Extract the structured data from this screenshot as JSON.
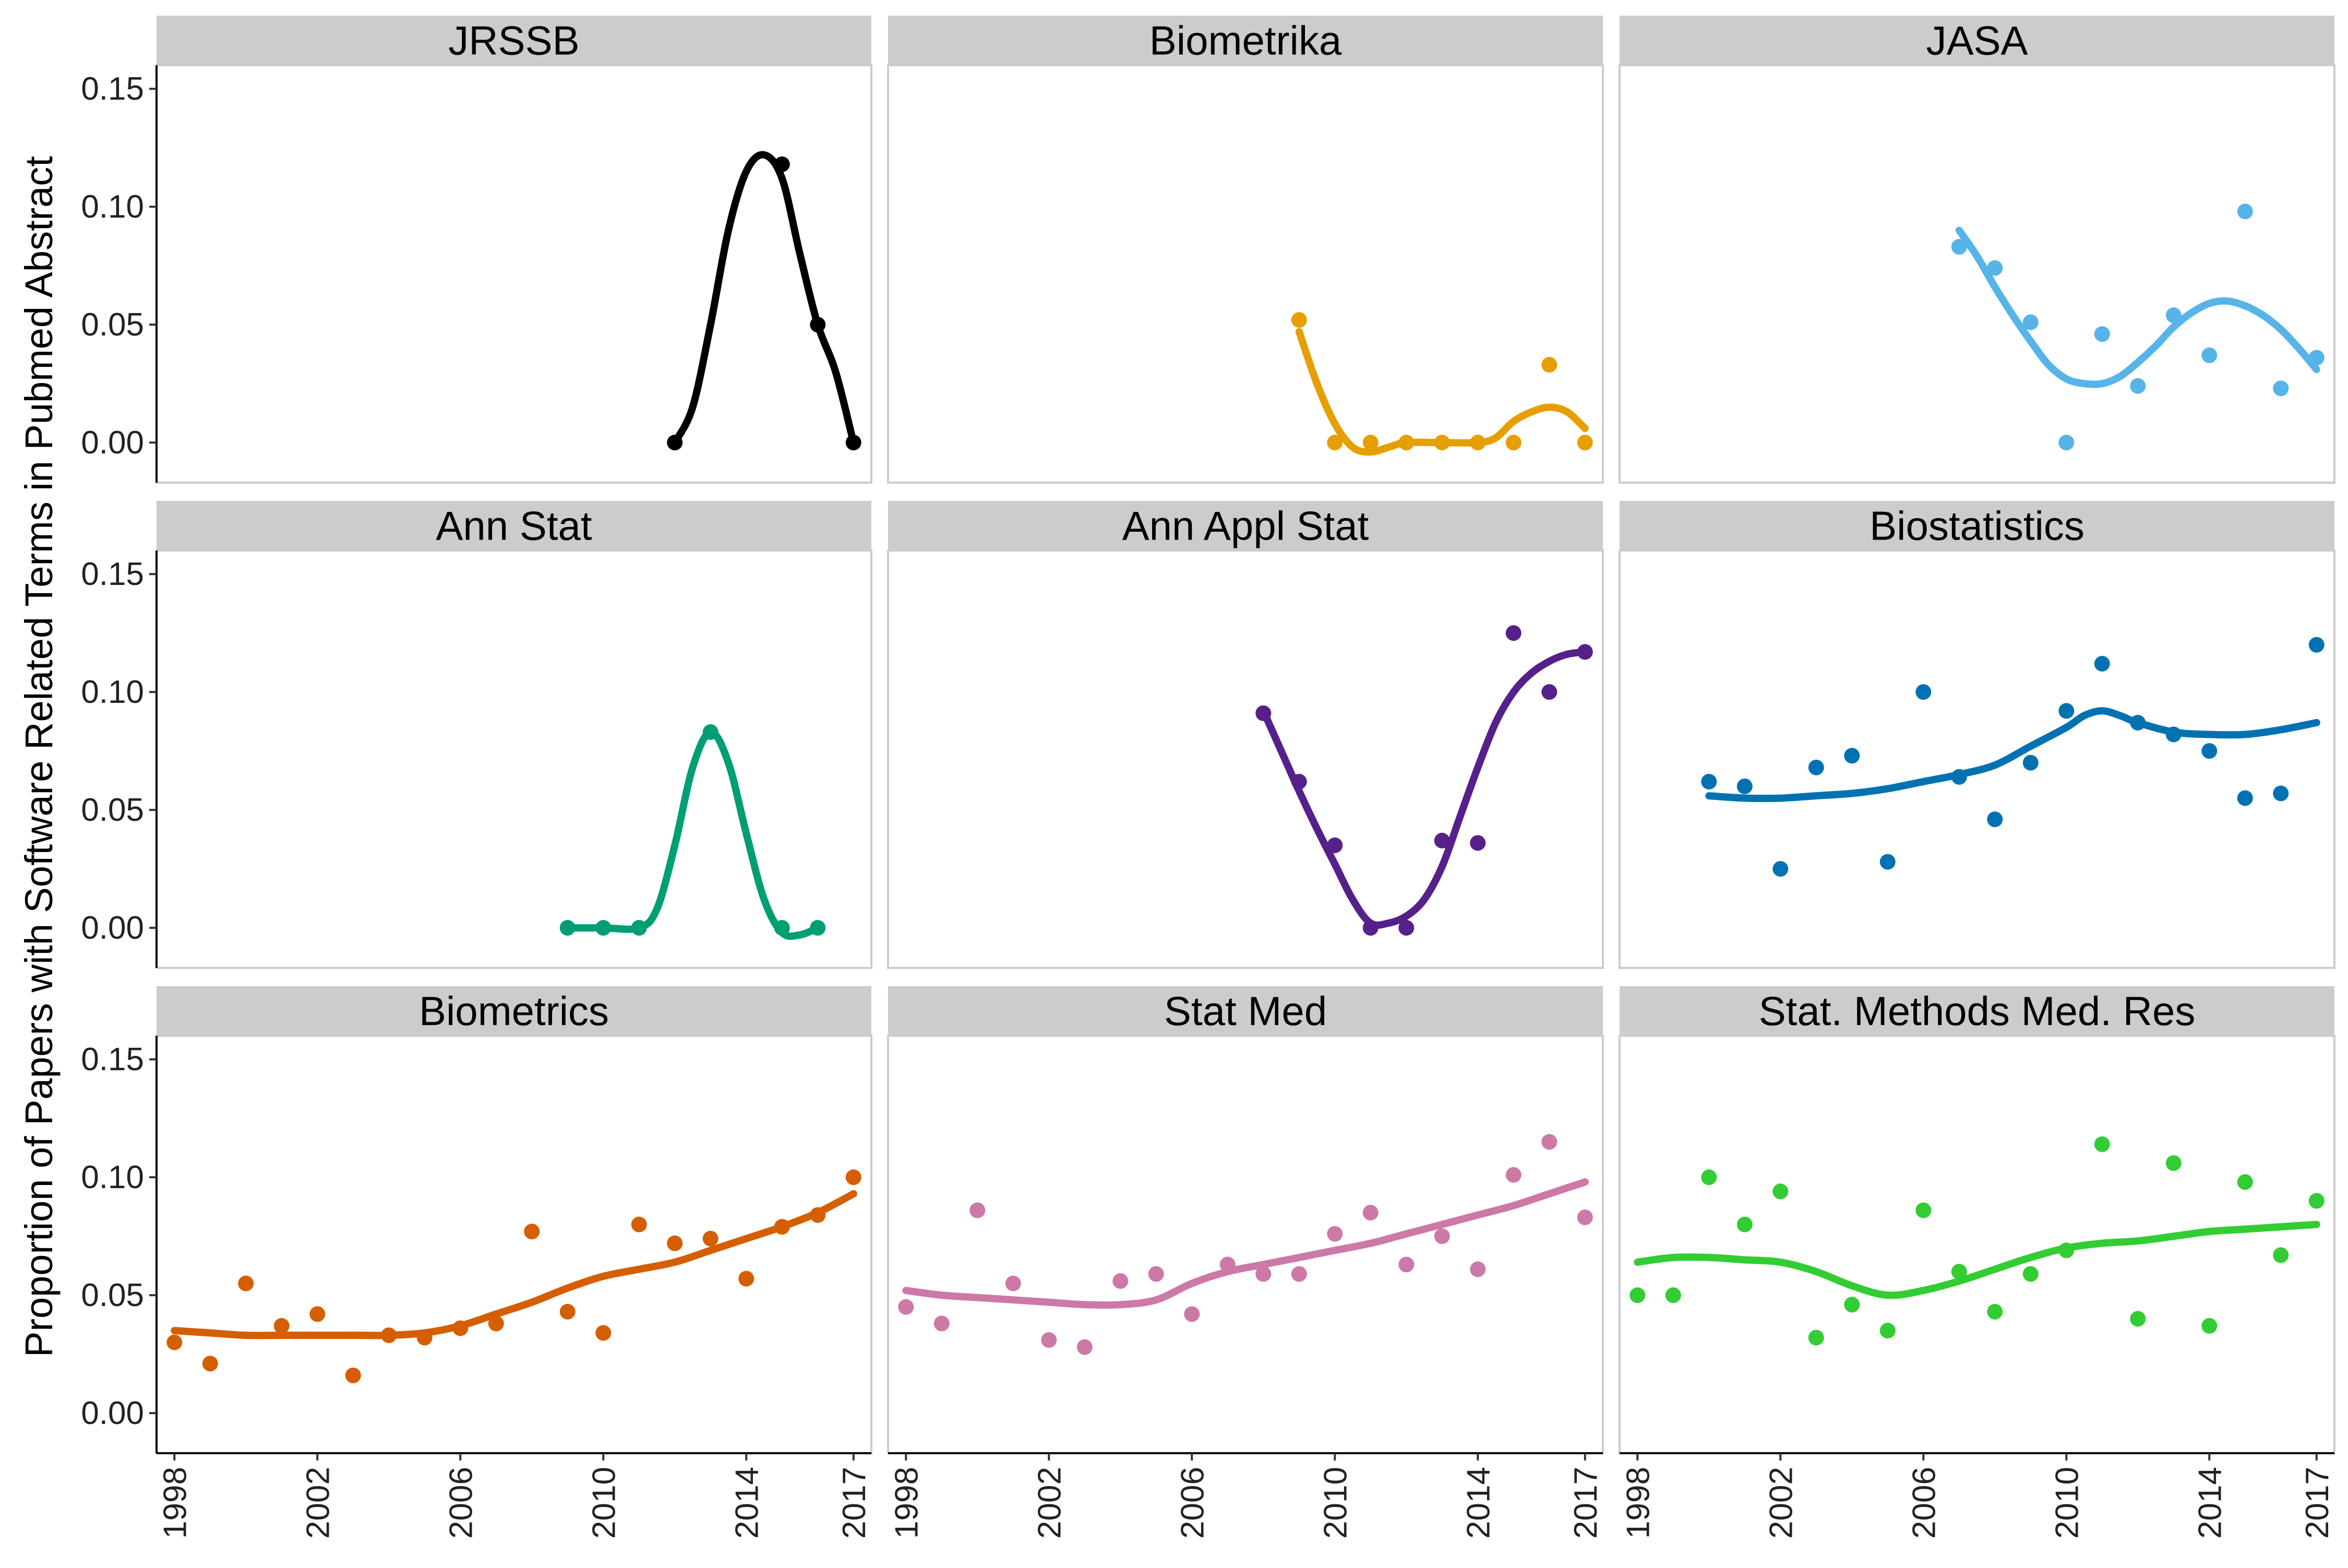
{
  "chart_data": {
    "type": "scatter",
    "ylabel": "Proportion of Papers with Software Related Terms in Pubmed Abstract",
    "xlabel": "",
    "x_ticks": [
      "1998",
      "2002",
      "2006",
      "2010",
      "2014",
      "2017"
    ],
    "y_ticks": [
      "0.00",
      "0.05",
      "0.10",
      "0.15"
    ],
    "xlim": [
      1997.5,
      2017.5
    ],
    "ylim": [
      -0.017,
      0.16
    ],
    "legend": "none",
    "grid": false,
    "trend": "smoothed line per panel",
    "panels": [
      {
        "name": "JRSSB",
        "color": "#000000",
        "x": [
          2012,
          2015,
          2016,
          2017
        ],
        "y": [
          0.0,
          0.118,
          0.05,
          0.0
        ],
        "smooth_x": [
          2012,
          2012.5,
          2013,
          2013.5,
          2014,
          2014.5,
          2015,
          2015.5,
          2016,
          2016.5,
          2017
        ],
        "smooth_y": [
          0.0,
          0.015,
          0.05,
          0.09,
          0.115,
          0.122,
          0.112,
          0.08,
          0.05,
          0.03,
          0.0
        ]
      },
      {
        "name": "Biometrika",
        "color": "#E69F00",
        "x": [
          2009,
          2010,
          2011,
          2012,
          2013,
          2014,
          2015,
          2016,
          2017
        ],
        "y": [
          0.052,
          0.0,
          0.0,
          0.0,
          0.0,
          0.0,
          0.0,
          0.033,
          0.0
        ],
        "smooth_x": [
          2009,
          2009.5,
          2010,
          2010.5,
          2011,
          2011.5,
          2012,
          2013,
          2014,
          2014.5,
          2015,
          2015.5,
          2016,
          2016.5,
          2017
        ],
        "smooth_y": [
          0.047,
          0.025,
          0.008,
          -0.002,
          -0.004,
          -0.002,
          0.0,
          0.0,
          0.0,
          0.002,
          0.009,
          0.013,
          0.015,
          0.013,
          0.006
        ]
      },
      {
        "name": "JASA",
        "color": "#56B4E9",
        "x": [
          2007,
          2008,
          2009,
          2010,
          2011,
          2012,
          2013,
          2014,
          2015,
          2016,
          2017
        ],
        "y": [
          0.083,
          0.074,
          0.051,
          0.0,
          0.046,
          0.024,
          0.054,
          0.037,
          0.098,
          0.023,
          0.036
        ],
        "smooth_x": [
          2007,
          2007.5,
          2008,
          2008.5,
          2009,
          2009.5,
          2010,
          2010.5,
          2011,
          2011.5,
          2012,
          2012.5,
          2013,
          2013.5,
          2014,
          2014.5,
          2015,
          2015.5,
          2016,
          2016.5,
          2017
        ],
        "smooth_y": [
          0.09,
          0.079,
          0.066,
          0.054,
          0.043,
          0.033,
          0.027,
          0.025,
          0.025,
          0.028,
          0.034,
          0.041,
          0.049,
          0.055,
          0.059,
          0.06,
          0.058,
          0.054,
          0.048,
          0.04,
          0.031
        ]
      },
      {
        "name": "Ann Stat",
        "color": "#009E73",
        "x": [
          2009,
          2010,
          2011,
          2013,
          2015,
          2016
        ],
        "y": [
          0.0,
          0.0,
          0.0,
          0.083,
          0.0,
          0.0
        ],
        "smooth_x": [
          2009,
          2010,
          2011,
          2011.5,
          2012,
          2012.5,
          2013,
          2013.5,
          2014,
          2014.5,
          2015,
          2015.5,
          2016
        ],
        "smooth_y": [
          0.0,
          0.0,
          0.0,
          0.008,
          0.035,
          0.068,
          0.083,
          0.07,
          0.04,
          0.012,
          -0.002,
          -0.003,
          0.0
        ]
      },
      {
        "name": "Ann Appl Stat",
        "color": "#56208A",
        "x": [
          2008,
          2009,
          2010,
          2011,
          2012,
          2013,
          2014,
          2015,
          2016,
          2017
        ],
        "y": [
          0.091,
          0.062,
          0.035,
          0.0,
          0.0,
          0.037,
          0.036,
          0.125,
          0.1,
          0.117
        ],
        "smooth_x": [
          2008,
          2008.5,
          2009,
          2009.5,
          2010,
          2010.5,
          2011,
          2011.5,
          2012,
          2012.5,
          2013,
          2013.5,
          2014,
          2014.5,
          2015,
          2015.5,
          2016,
          2016.5,
          2017
        ],
        "smooth_y": [
          0.092,
          0.075,
          0.058,
          0.042,
          0.027,
          0.012,
          0.002,
          0.002,
          0.005,
          0.012,
          0.026,
          0.047,
          0.068,
          0.087,
          0.1,
          0.108,
          0.113,
          0.116,
          0.117
        ]
      },
      {
        "name": "Biostatistics",
        "color": "#0072B2",
        "x": [
          2000,
          2001,
          2002,
          2003,
          2004,
          2005,
          2006,
          2007,
          2008,
          2009,
          2010,
          2011,
          2012,
          2013,
          2014,
          2015,
          2016,
          2017
        ],
        "y": [
          0.062,
          0.06,
          0.025,
          0.068,
          0.073,
          0.028,
          0.1,
          0.064,
          0.046,
          0.07,
          0.092,
          0.112,
          0.087,
          0.082,
          0.075,
          0.055,
          0.057,
          0.12
        ],
        "smooth_x": [
          2000,
          2001,
          2002,
          2003,
          2004,
          2005,
          2006,
          2007,
          2008,
          2009,
          2010,
          2010.5,
          2011,
          2011.5,
          2012,
          2013,
          2014,
          2015,
          2016,
          2017
        ],
        "smooth_y": [
          0.056,
          0.055,
          0.055,
          0.056,
          0.057,
          0.059,
          0.062,
          0.065,
          0.069,
          0.077,
          0.085,
          0.09,
          0.092,
          0.09,
          0.087,
          0.083,
          0.082,
          0.082,
          0.084,
          0.087
        ]
      },
      {
        "name": "Biometrics",
        "color": "#D55E00",
        "x": [
          1998,
          1999,
          2000,
          2001,
          2002,
          2003,
          2004,
          2005,
          2006,
          2007,
          2008,
          2009,
          2010,
          2011,
          2012,
          2013,
          2014,
          2015,
          2016,
          2017
        ],
        "y": [
          0.03,
          0.021,
          0.055,
          0.037,
          0.042,
          0.016,
          0.033,
          0.032,
          0.036,
          0.038,
          0.077,
          0.043,
          0.034,
          0.08,
          0.072,
          0.074,
          0.057,
          0.079,
          0.084,
          0.1
        ],
        "smooth_x": [
          1998,
          1999,
          2000,
          2001,
          2002,
          2003,
          2004,
          2005,
          2006,
          2007,
          2008,
          2009,
          2010,
          2011,
          2012,
          2013,
          2014,
          2015,
          2016,
          2017
        ],
        "smooth_y": [
          0.035,
          0.034,
          0.033,
          0.033,
          0.033,
          0.033,
          0.033,
          0.034,
          0.037,
          0.042,
          0.047,
          0.053,
          0.058,
          0.061,
          0.064,
          0.069,
          0.074,
          0.079,
          0.085,
          0.093
        ]
      },
      {
        "name": "Stat Med",
        "color": "#CC79A7",
        "x": [
          1998,
          1999,
          2000,
          2001,
          2002,
          2003,
          2004,
          2005,
          2006,
          2007,
          2008,
          2009,
          2010,
          2011,
          2012,
          2013,
          2014,
          2015,
          2016,
          2017
        ],
        "y": [
          0.045,
          0.038,
          0.086,
          0.055,
          0.031,
          0.028,
          0.056,
          0.059,
          0.042,
          0.063,
          0.059,
          0.059,
          0.076,
          0.085,
          0.063,
          0.075,
          0.061,
          0.101,
          0.115,
          0.083
        ],
        "smooth_x": [
          1998,
          1999,
          2000,
          2001,
          2002,
          2003,
          2004,
          2005,
          2006,
          2007,
          2008,
          2009,
          2010,
          2011,
          2012,
          2013,
          2014,
          2015,
          2016,
          2017
        ],
        "smooth_y": [
          0.052,
          0.05,
          0.049,
          0.048,
          0.047,
          0.046,
          0.046,
          0.048,
          0.055,
          0.06,
          0.063,
          0.066,
          0.069,
          0.072,
          0.076,
          0.08,
          0.084,
          0.088,
          0.093,
          0.098
        ]
      },
      {
        "name": "Stat. Methods Med. Res",
        "color": "#32CD32",
        "x": [
          1998,
          1999,
          2000,
          2001,
          2002,
          2003,
          2004,
          2005,
          2006,
          2007,
          2008,
          2009,
          2010,
          2011,
          2012,
          2013,
          2014,
          2015,
          2016,
          2017
        ],
        "y": [
          0.05,
          0.05,
          0.1,
          0.08,
          0.094,
          0.032,
          0.046,
          0.035,
          0.086,
          0.06,
          0.043,
          0.059,
          0.069,
          0.114,
          0.04,
          0.106,
          0.037,
          0.098,
          0.067,
          0.09
        ],
        "smooth_x": [
          1998,
          1999,
          2000,
          2001,
          2002,
          2003,
          2004,
          2005,
          2006,
          2007,
          2008,
          2009,
          2010,
          2011,
          2012,
          2013,
          2014,
          2015,
          2016,
          2017
        ],
        "smooth_y": [
          0.064,
          0.066,
          0.066,
          0.065,
          0.064,
          0.06,
          0.054,
          0.05,
          0.052,
          0.056,
          0.061,
          0.066,
          0.07,
          0.072,
          0.073,
          0.075,
          0.077,
          0.078,
          0.079,
          0.08
        ]
      }
    ]
  }
}
